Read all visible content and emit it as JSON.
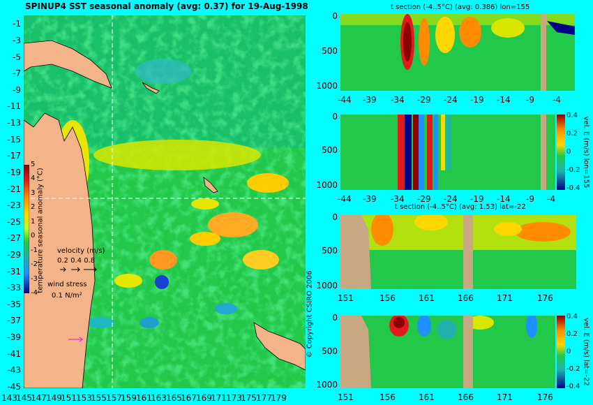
{
  "chart_data": [
    {
      "type": "heatmap",
      "title": "SPINUP4 SST seasonal anomaly (avg: 0.37) for 19-Aug-1998",
      "x_ticks": [
        "143",
        "145",
        "147",
        "149",
        "151",
        "153",
        "155",
        "157",
        "159",
        "161",
        "163",
        "165",
        "167",
        "169",
        "171",
        "173",
        "175",
        "177",
        "179"
      ],
      "y_ticks": [
        "-1",
        "-3",
        "-5",
        "-7",
        "-9",
        "-11",
        "-13",
        "-15",
        "-17",
        "-19",
        "-21",
        "-23",
        "-25",
        "-27",
        "-29",
        "-31",
        "-33",
        "-35",
        "-37",
        "-39",
        "-41",
        "-43",
        "-45"
      ],
      "xlim": [
        142.5,
        180
      ],
      "ylim": [
        -45,
        0.5
      ],
      "colorbar": {
        "label": "temperature seasonal anomaly (°C)",
        "ticks": [
          "5",
          "4",
          "3",
          "2",
          "1",
          "0",
          "-1",
          "-2",
          "-3",
          "-4"
        ],
        "range": [
          -4,
          5
        ]
      },
      "velocity_legend": {
        "label": "velocity (m/s)",
        "values": [
          "0.2",
          "0.4",
          "0.8"
        ]
      },
      "wind_legend": {
        "label": "wind stress",
        "value": "0.1 N/m²"
      },
      "crosshair": {
        "lon": 155,
        "lat": -22
      }
    },
    {
      "type": "heatmap",
      "title": "t section (-4..5°C) (avg: 0.386) lon=155",
      "x_ticks": [
        "-44",
        "-39",
        "-34",
        "-29",
        "-24",
        "-19",
        "-14",
        "-9",
        "-4"
      ],
      "y_ticks": [
        "0",
        "500",
        "1000"
      ],
      "xlim": [
        -45,
        0
      ],
      "ylim": [
        1050,
        0
      ]
    },
    {
      "type": "heatmap",
      "title": "",
      "ylabel": "vel. E (m/s) lon=155",
      "x_ticks": [
        "-44",
        "-39",
        "-34",
        "-29",
        "-24",
        "-19",
        "-14",
        "-9",
        "-4"
      ],
      "y_ticks": [
        "0",
        "500",
        "1000"
      ],
      "xlim": [
        -45,
        0
      ],
      "ylim": [
        1050,
        0
      ],
      "colorbar": {
        "ticks": [
          "0.4",
          "0.2",
          "0",
          "-0.2",
          "-0.4"
        ],
        "range": [
          -0.4,
          0.4
        ]
      }
    },
    {
      "type": "heatmap",
      "title": "t section (-4..5°C) (avg: 1.53) lat=-22",
      "x_ticks": [
        "151",
        "156",
        "161",
        "166",
        "171",
        "176"
      ],
      "y_ticks": [
        "0",
        "500",
        "1000"
      ],
      "xlim": [
        150,
        180
      ],
      "ylim": [
        1050,
        0
      ]
    },
    {
      "type": "heatmap",
      "title": "",
      "ylabel": "vel. E (m/s) lat=-22",
      "x_ticks": [
        "151",
        "156",
        "161",
        "166",
        "171",
        "176"
      ],
      "y_ticks": [
        "0",
        "500",
        "1000"
      ],
      "xlim": [
        150,
        180
      ],
      "ylim": [
        1050,
        0
      ],
      "colorbar": {
        "ticks": [
          "0.4",
          "0.2",
          "0",
          "-0.2",
          "-0.4"
        ],
        "range": [
          -0.4,
          0.4
        ]
      }
    }
  ],
  "copyright": "© Copyright CSIRO 2006"
}
